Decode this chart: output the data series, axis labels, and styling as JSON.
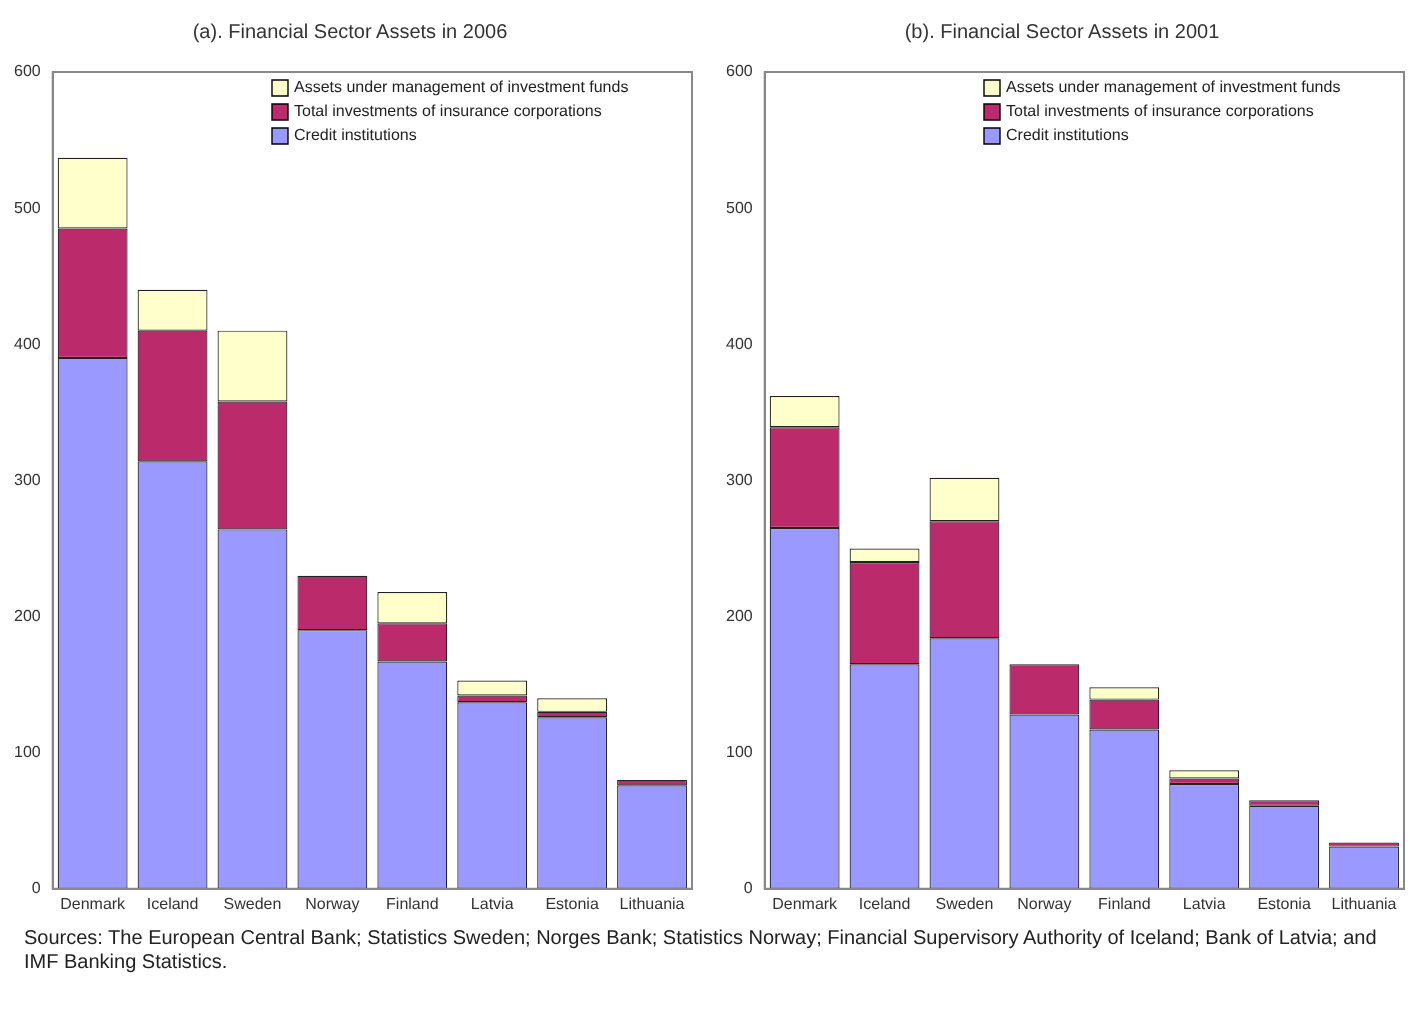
{
  "chart_data": [
    {
      "type": "bar",
      "title": "(a). Financial Sector Assets in 2006",
      "categories": [
        "Denmark",
        "Iceland",
        "Sweden",
        "Norway",
        "Finland",
        "Latvia",
        "Estonia",
        "Lithuania"
      ],
      "stacked": true,
      "ylim": [
        0,
        600
      ],
      "yticks": [
        0,
        100,
        200,
        300,
        400,
        500,
        600
      ],
      "grid": false,
      "legend": "top right",
      "series": [
        {
          "name": "Credit institutions",
          "color": "#9999ff",
          "values": [
            390,
            314,
            264,
            190,
            167,
            137,
            126,
            76
          ]
        },
        {
          "name": "Total investments of insurance corporations",
          "color": "#bb2a6b",
          "values": [
            95,
            96,
            94,
            40,
            28,
            5,
            4,
            4
          ]
        },
        {
          "name": "Assets under management of investment funds",
          "color": "#ffffcc",
          "values": [
            52,
            30,
            52,
            null,
            23,
            11,
            10,
            null
          ]
        }
      ]
    },
    {
      "type": "bar",
      "title": "(b). Financial Sector Assets in 2001",
      "categories": [
        "Denmark",
        "Iceland",
        "Sweden",
        "Norway",
        "Finland",
        "Latvia",
        "Estonia",
        "Lithuania"
      ],
      "stacked": true,
      "ylim": [
        0,
        600
      ],
      "yticks": [
        0,
        100,
        200,
        300,
        400,
        500,
        600
      ],
      "grid": false,
      "legend": "top right",
      "series": [
        {
          "name": "Credit institutions",
          "color": "#9999ff",
          "values": [
            265,
            165,
            184,
            128,
            117,
            77,
            61,
            31
          ]
        },
        {
          "name": "Total investments of insurance corporations",
          "color": "#bb2a6b",
          "values": [
            74,
            75,
            86,
            37,
            22,
            4,
            4,
            3
          ]
        },
        {
          "name": "Assets under management of investment funds",
          "color": "#ffffcc",
          "values": [
            23,
            10,
            32,
            null,
            9,
            6,
            null,
            null
          ]
        }
      ],
      "annotations": [
        "Sources: The European Central Bank; Statistics Sweden; Norges Bank; Statistics Norway; Financial  Supervisory Authority of Iceland; Bank of Latvia; and IMF Banking Statistics."
      ]
    }
  ]
}
